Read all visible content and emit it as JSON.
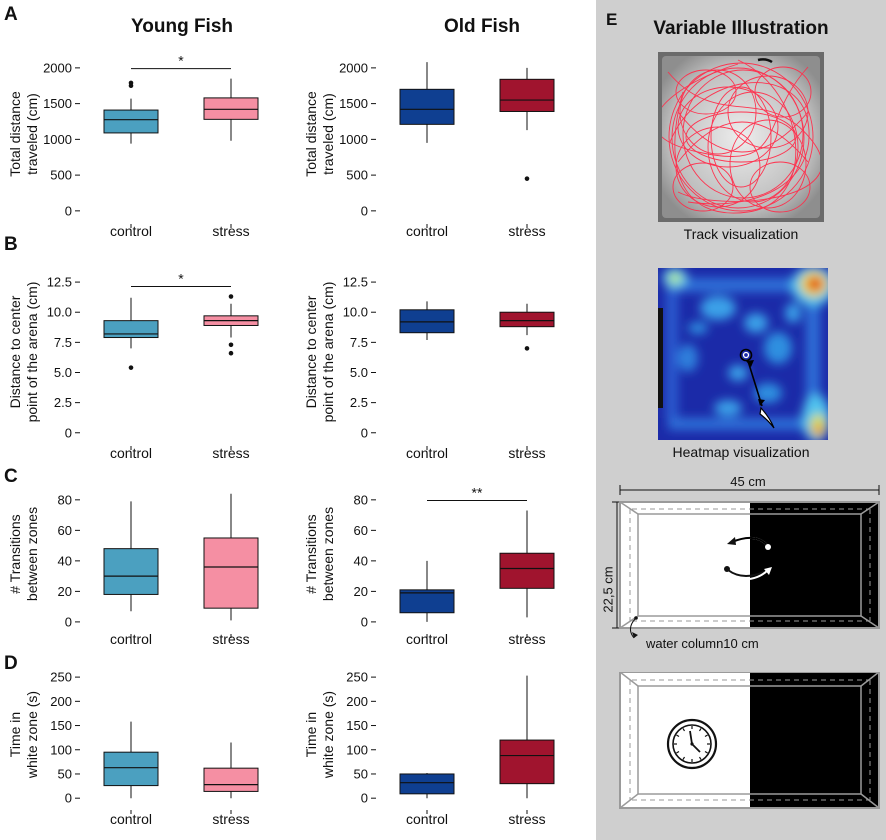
{
  "panel_labels": {
    "a": "A",
    "b": "B",
    "c": "C",
    "d": "D",
    "e": "E"
  },
  "column_titles": {
    "young": "Young Fish",
    "old": "Old Fish"
  },
  "illustration": {
    "title": "Variable Illustration",
    "track_caption": "Track visualization",
    "heatmap_caption": "Heatmap visualization",
    "width_label": "45 cm",
    "height_label": "22,5 cm",
    "water_label": "water column10 cm"
  },
  "colors": {
    "young_control": "#4ba0c0",
    "young_stress": "#f58fa3",
    "old_control": "#0f3f91",
    "old_stress": "#a0142e",
    "panel_bg": "#cfcfcf",
    "track": "#e8324a"
  },
  "chart_data": [
    {
      "id": "A-young",
      "type": "box",
      "ylabel": [
        "Total distance",
        "traveled (cm)"
      ],
      "ylim": [
        -100,
        2250
      ],
      "yticks": [
        0,
        500,
        1000,
        1500,
        2000
      ],
      "categories": [
        "control",
        "stress"
      ],
      "boxes": [
        {
          "name": "control",
          "min": 940,
          "q1": 1090,
          "median": 1275,
          "q3": 1410,
          "max": 1570,
          "outliers": [
            1750,
            1790
          ]
        },
        {
          "name": "stress",
          "min": 980,
          "q1": 1280,
          "median": 1420,
          "q3": 1580,
          "max": 1850,
          "outliers": []
        }
      ],
      "significance": "*"
    },
    {
      "id": "A-old",
      "type": "box",
      "ylabel": [
        "Total distance",
        "traveled (cm)"
      ],
      "ylim": [
        -100,
        2250
      ],
      "yticks": [
        0,
        500,
        1000,
        1500,
        2000
      ],
      "categories": [
        "control",
        "stress"
      ],
      "boxes": [
        {
          "name": "control",
          "min": 950,
          "q1": 1210,
          "median": 1420,
          "q3": 1700,
          "max": 2080,
          "outliers": []
        },
        {
          "name": "stress",
          "min": 1130,
          "q1": 1390,
          "median": 1550,
          "q3": 1840,
          "max": 2000,
          "outliers": [
            450
          ]
        }
      ],
      "significance": ""
    },
    {
      "id": "B-young",
      "type": "box",
      "ylabel": [
        "Distance to center",
        "point of the arena (cm)"
      ],
      "ylim": [
        -0.6,
        14
      ],
      "yticks": [
        0,
        2.5,
        5.0,
        7.5,
        10.0,
        12.5
      ],
      "ytick_labels": [
        "0",
        "2.5",
        "5.0",
        "7.5",
        "10.0",
        "12.5"
      ],
      "categories": [
        "control",
        "stress"
      ],
      "boxes": [
        {
          "name": "control",
          "min": 7.0,
          "q1": 7.9,
          "median": 8.2,
          "q3": 9.3,
          "max": 11.2,
          "outliers": [
            5.4
          ]
        },
        {
          "name": "stress",
          "min": 7.9,
          "q1": 8.9,
          "median": 9.3,
          "q3": 9.7,
          "max": 10.7,
          "outliers": [
            11.3,
            7.3,
            6.6
          ]
        }
      ],
      "significance": "*"
    },
    {
      "id": "B-old",
      "type": "box",
      "ylabel": [
        "Distance to center",
        "point of the arena (cm)"
      ],
      "ylim": [
        -0.6,
        14
      ],
      "yticks": [
        0,
        2.5,
        5.0,
        7.5,
        10.0,
        12.5
      ],
      "ytick_labels": [
        "0",
        "2.5",
        "5.0",
        "7.5",
        "10.0",
        "12.5"
      ],
      "categories": [
        "control",
        "stress"
      ],
      "boxes": [
        {
          "name": "control",
          "min": 7.7,
          "q1": 8.3,
          "median": 9.2,
          "q3": 10.2,
          "max": 10.9,
          "outliers": []
        },
        {
          "name": "stress",
          "min": 8.1,
          "q1": 8.8,
          "median": 9.3,
          "q3": 10.0,
          "max": 10.7,
          "outliers": [
            7.0
          ]
        }
      ],
      "significance": ""
    },
    {
      "id": "C-young",
      "type": "box",
      "ylabel": [
        "# Transitions",
        "between zones"
      ],
      "ylim": [
        -4,
        93
      ],
      "yticks": [
        0,
        20,
        40,
        60,
        80
      ],
      "categories": [
        "control",
        "stress"
      ],
      "boxes": [
        {
          "name": "control",
          "min": 7,
          "q1": 18,
          "median": 30,
          "q3": 48,
          "max": 79,
          "outliers": []
        },
        {
          "name": "stress",
          "min": 1,
          "q1": 9,
          "median": 36,
          "q3": 55,
          "max": 84,
          "outliers": []
        }
      ],
      "significance": ""
    },
    {
      "id": "C-old",
      "type": "box",
      "ylabel": [
        "# Transitions",
        "between zones"
      ],
      "ylim": [
        -4,
        93
      ],
      "yticks": [
        0,
        20,
        40,
        60,
        80
      ],
      "categories": [
        "control",
        "stress"
      ],
      "boxes": [
        {
          "name": "control",
          "min": 0,
          "q1": 6,
          "median": 19,
          "q3": 21,
          "max": 40,
          "outliers": []
        },
        {
          "name": "stress",
          "min": 3,
          "q1": 22,
          "median": 35,
          "q3": 45,
          "max": 73,
          "outliers": []
        }
      ],
      "significance": "**"
    },
    {
      "id": "D-young",
      "type": "box",
      "ylabel": [
        "Time in",
        "white zone (s)"
      ],
      "ylim": [
        -12,
        275
      ],
      "yticks": [
        0,
        50,
        100,
        150,
        200,
        250
      ],
      "categories": [
        "control",
        "stress"
      ],
      "boxes": [
        {
          "name": "control",
          "min": 0,
          "q1": 26,
          "median": 63,
          "q3": 95,
          "max": 158,
          "outliers": []
        },
        {
          "name": "stress",
          "min": 0,
          "q1": 14,
          "median": 28,
          "q3": 62,
          "max": 115,
          "outliers": []
        }
      ],
      "significance": ""
    },
    {
      "id": "D-old",
      "type": "box",
      "ylabel": [
        "Time in",
        "white zone (s)"
      ],
      "ylim": [
        -12,
        275
      ],
      "yticks": [
        0,
        50,
        100,
        150,
        200,
        250
      ],
      "categories": [
        "control",
        "stress"
      ],
      "boxes": [
        {
          "name": "control",
          "min": 0,
          "q1": 9,
          "median": 32,
          "q3": 50,
          "max": 52,
          "outliers": []
        },
        {
          "name": "stress",
          "min": 0,
          "q1": 30,
          "median": 88,
          "q3": 120,
          "max": 253,
          "outliers": []
        }
      ],
      "significance": ""
    }
  ]
}
